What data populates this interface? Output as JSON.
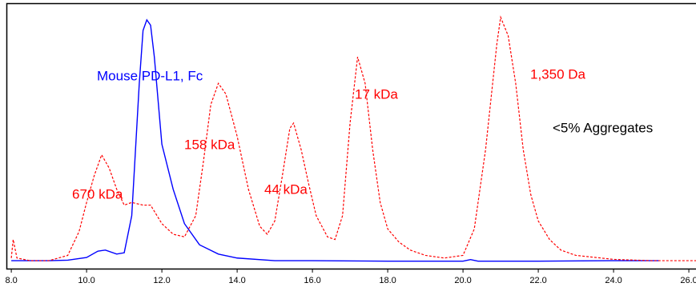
{
  "chart_data": {
    "type": "line",
    "xlim": [
      7.87,
      26.19
    ],
    "ylim": [
      0,
      100
    ],
    "xticks": [
      {
        "value": 8,
        "label": "8.0"
      },
      {
        "value": 10,
        "label": "10.0"
      },
      {
        "value": 12,
        "label": "12.0"
      },
      {
        "value": 14,
        "label": "14.0"
      },
      {
        "value": 16,
        "label": "16.0"
      },
      {
        "value": 18,
        "label": "18.0"
      },
      {
        "value": 20,
        "label": "20.0"
      },
      {
        "value": 22,
        "label": "22.0"
      },
      {
        "value": 24,
        "label": "24.0"
      },
      {
        "value": 26,
        "label": "26.0"
      }
    ],
    "series": [
      {
        "name": "Mouse PD-L1, Fc",
        "color": "#0000ff",
        "dash": false,
        "x": [
          8.0,
          9.0,
          9.5,
          10.0,
          10.3,
          10.5,
          10.8,
          11.0,
          11.2,
          11.4,
          11.5,
          11.6,
          11.7,
          11.8,
          12.0,
          12.3,
          12.6,
          13.0,
          13.5,
          14.0,
          15.0,
          16.0,
          18.0,
          20.0,
          20.2,
          20.4,
          22.0,
          24.0,
          25.0,
          25.2
        ],
        "values": [
          3,
          3,
          3.2,
          4.2,
          6.6,
          7,
          5.5,
          6,
          20,
          70,
          90,
          94,
          92,
          80,
          47,
          30,
          17,
          9,
          5.5,
          4,
          3,
          3,
          2.8,
          2.8,
          3.4,
          2.8,
          2.8,
          3,
          3,
          3
        ]
      },
      {
        "color": "#ff0000",
        "dash": true,
        "x": [
          8.0,
          8.05,
          8.15,
          8.5,
          9.0,
          9.5,
          9.8,
          10.0,
          10.2,
          10.4,
          10.6,
          10.8,
          11.0,
          11.2,
          11.5,
          11.7,
          12.0,
          12.3,
          12.6,
          12.9,
          13.1,
          13.3,
          13.5,
          13.7,
          14.0,
          14.3,
          14.6,
          14.8,
          15.0,
          15.2,
          15.4,
          15.5,
          15.7,
          15.9,
          16.1,
          16.4,
          16.6,
          16.8,
          17.0,
          17.2,
          17.4,
          17.6,
          17.8,
          18.0,
          18.3,
          18.6,
          19.0,
          19.5,
          20.0,
          20.3,
          20.6,
          20.9,
          21.0,
          21.2,
          21.4,
          21.6,
          21.8,
          22.0,
          22.3,
          22.6,
          23.0,
          24.0,
          25.0,
          26.0,
          26.19
        ],
        "values": [
          4,
          11,
          4,
          3,
          3,
          5,
          14,
          25,
          35,
          43,
          38,
          30,
          24,
          25,
          24,
          24,
          17,
          13,
          12,
          20,
          40,
          62,
          70,
          66,
          50,
          30,
          16,
          13,
          18,
          35,
          53,
          55,
          45,
          32,
          20,
          12,
          11,
          20,
          55,
          80,
          70,
          45,
          25,
          15,
          10,
          7,
          5,
          4,
          5,
          15,
          45,
          85,
          95,
          88,
          70,
          45,
          28,
          18,
          11,
          7,
          5,
          3.5,
          3,
          3,
          3
        ]
      }
    ],
    "annotations": [
      {
        "text": "670 kDa",
        "color": "#ff0000"
      },
      {
        "text": "158 kDa",
        "color": "#ff0000"
      },
      {
        "text": "44 kDa",
        "color": "#ff0000"
      },
      {
        "text": "17 kDa",
        "color": "#ff0000"
      },
      {
        "text": "1,350 Da",
        "color": "#ff0000"
      },
      {
        "text": "<5% Aggregates",
        "color": "#000000"
      }
    ]
  }
}
